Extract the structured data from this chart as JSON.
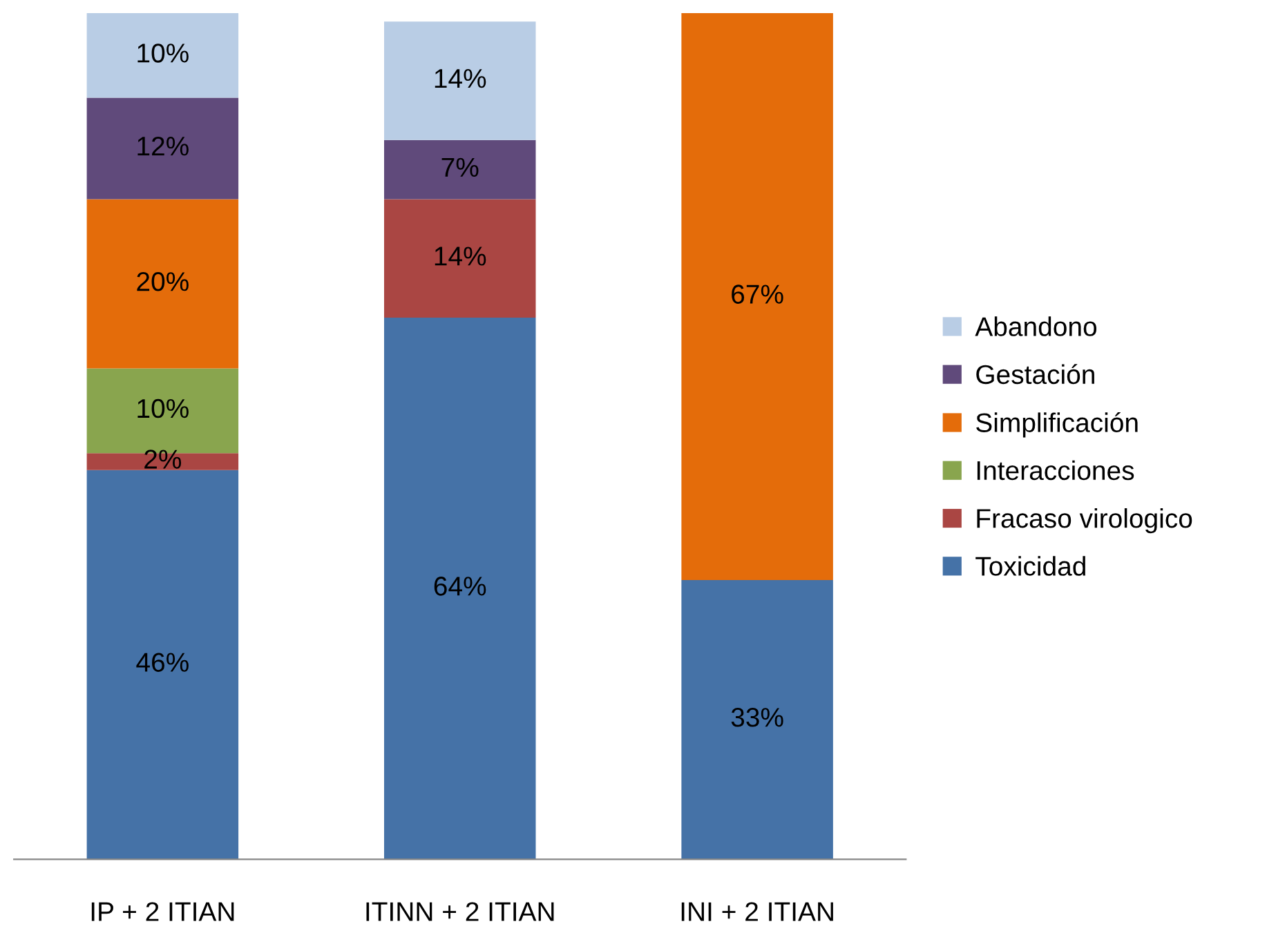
{
  "chart_data": {
    "type": "bar",
    "stacked": true,
    "categories": [
      "IP + 2 ITIAN",
      "ITINN + 2 ITIAN",
      "INI + 2 ITIAN"
    ],
    "series": [
      {
        "name": "Toxicidad",
        "color": "#4572a7",
        "values": [
          46,
          64,
          33
        ],
        "value_labels": [
          "46%",
          "64%",
          "33%"
        ]
      },
      {
        "name": "Fracaso virologico",
        "color": "#aa4643",
        "values": [
          2,
          14,
          null
        ],
        "value_labels": [
          "2%",
          "14%",
          null
        ]
      },
      {
        "name": "Interacciones",
        "color": "#89a54e",
        "values": [
          10,
          null,
          null
        ],
        "value_labels": [
          "10%",
          null,
          null
        ]
      },
      {
        "name": "Simplificación",
        "color": "#e46c0a",
        "values": [
          20,
          null,
          67
        ],
        "value_labels": [
          "20%",
          null,
          "67%"
        ]
      },
      {
        "name": "Gestación",
        "color": "#604a7b",
        "values": [
          12,
          7,
          null
        ],
        "value_labels": [
          "12%",
          "7%",
          null
        ]
      },
      {
        "name": "Abandono",
        "color": "#b9cde5",
        "values": [
          10,
          14,
          null
        ],
        "value_labels": [
          "10%",
          "14%",
          null
        ]
      }
    ],
    "legend": "right",
    "grid": false
  }
}
